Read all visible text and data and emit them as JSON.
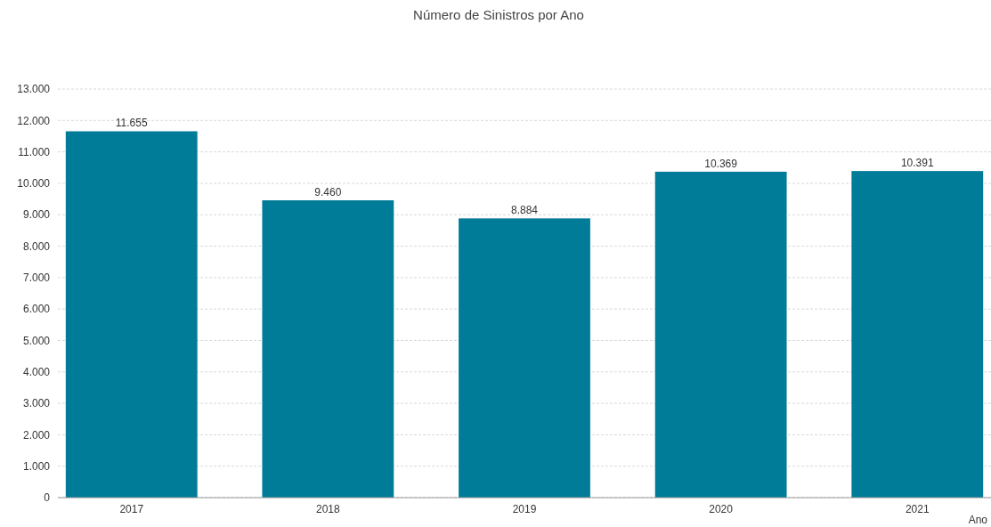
{
  "chart_data": {
    "type": "bar",
    "title": "Número de Sinistros por Ano",
    "xlabel": "Ano",
    "categories": [
      "2017",
      "2018",
      "2019",
      "2020",
      "2021"
    ],
    "values": [
      11655,
      9460,
      8884,
      10369,
      10391
    ],
    "value_labels": [
      "11.655",
      "9.460",
      "8.884",
      "10.369",
      "10.391"
    ],
    "color": "#007c99",
    "ylim": [
      0,
      13000
    ],
    "yticks": [
      {
        "value": 0,
        "label": "0"
      },
      {
        "value": 1000,
        "label": "1.000"
      },
      {
        "value": 2000,
        "label": "2.000"
      },
      {
        "value": 3000,
        "label": "3.000"
      },
      {
        "value": 4000,
        "label": "4.000"
      },
      {
        "value": 5000,
        "label": "5.000"
      },
      {
        "value": 6000,
        "label": "6.000"
      },
      {
        "value": 7000,
        "label": "7.000"
      },
      {
        "value": 8000,
        "label": "8.000"
      },
      {
        "value": 9000,
        "label": "9.000"
      },
      {
        "value": 10000,
        "label": "10.000"
      },
      {
        "value": 11000,
        "label": "11.000"
      },
      {
        "value": 12000,
        "label": "12.000"
      },
      {
        "value": 13000,
        "label": "13.000"
      }
    ],
    "grid": "y"
  }
}
